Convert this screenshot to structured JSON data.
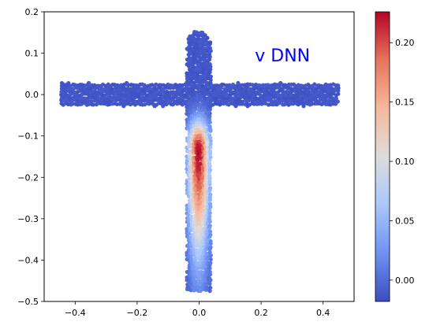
{
  "chart_data": {
    "type": "scatter",
    "title": "",
    "xlabel": "",
    "ylabel": "",
    "xlim": [
      -0.5,
      0.5
    ],
    "ylim": [
      -0.5,
      0.2
    ],
    "x_ticks": [
      -0.4,
      -0.2,
      0.0,
      0.2,
      0.4
    ],
    "x_tick_labels": [
      "−0.4",
      "−0.2",
      "0.0",
      "0.2",
      "0.4"
    ],
    "y_ticks": [
      0.2,
      0.1,
      0.0,
      -0.1,
      -0.2,
      -0.3,
      -0.4,
      -0.5
    ],
    "y_tick_labels": [
      "0.2",
      "0.1",
      "0.0",
      "−0.1",
      "−0.2",
      "−0.3",
      "−0.4",
      "−0.5"
    ],
    "annotation": {
      "text": "v DNN",
      "x": 0.18,
      "y": 0.08,
      "color": "#0000ff"
    },
    "grid": false,
    "colormap": "coolwarm",
    "colormap_stops": [
      "#3b4cc0",
      "#6f92f3",
      "#aac7fd",
      "#dddcdc",
      "#f7b89c",
      "#e7745b",
      "#b40426"
    ],
    "colorbar": {
      "min": -0.018,
      "max": 0.226,
      "ticks": [
        0.0,
        0.05,
        0.1,
        0.15,
        0.2
      ],
      "tick_labels": [
        "0.00",
        "0.05",
        "0.10",
        "0.15",
        "0.20"
      ]
    },
    "domain": {
      "horizontal_bar": {
        "x": [
          -0.45,
          0.45
        ],
        "y": [
          -0.028,
          0.028
        ]
      },
      "vertical_bar": {
        "x": [
          -0.04,
          0.04
        ],
        "y": [
          -0.475,
          0.115
        ],
        "top_cap_radius": 0.04
      }
    },
    "field": {
      "peak_value": 0.226,
      "peak_location": [
        0.0,
        -0.13
      ],
      "background_value": -0.012
    }
  }
}
